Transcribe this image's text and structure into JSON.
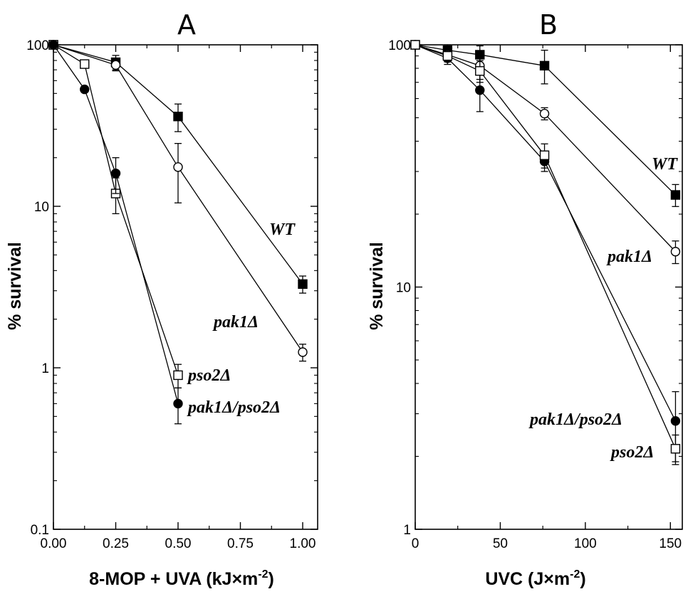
{
  "chart_data": [
    {
      "type": "line",
      "title": "A",
      "xlabel": "8-MOP + UVA (kJ×m",
      "xlabel_sup": "-2",
      "xlabel_end": ")",
      "ylabel": "% survival",
      "yscale": "log",
      "xlim": [
        0,
        1.06
      ],
      "ylim": [
        0.1,
        100
      ],
      "xticks": [
        "0.00",
        "0.25",
        "0.50",
        "0.75",
        "1.00"
      ],
      "xtick_values": [
        0,
        0.25,
        0.5,
        0.75,
        1.0
      ],
      "yticks": [
        "0.1",
        "1",
        "10",
        "100"
      ],
      "ytick_values": [
        0.1,
        1,
        10,
        100
      ],
      "series": [
        {
          "name": "WT",
          "marker": "filled-square",
          "x": [
            0,
            0.25,
            0.5,
            1.0
          ],
          "y": [
            100,
            78,
            36,
            3.3
          ],
          "err": [
            0,
            8,
            7,
            0.4
          ]
        },
        {
          "name": "pak1Δ",
          "marker": "open-circle",
          "x": [
            0,
            0.25,
            0.5,
            1.0
          ],
          "y": [
            100,
            75,
            17.5,
            1.25
          ],
          "err": [
            0,
            6,
            7,
            0.15
          ]
        },
        {
          "name": "pso2Δ",
          "marker": "open-square",
          "x": [
            0,
            0.125,
            0.25,
            0.5
          ],
          "y": [
            100,
            76,
            12,
            0.9
          ],
          "err": [
            0,
            0,
            3,
            0.15
          ]
        },
        {
          "name": "pak1Δ/pso2Δ",
          "marker": "filled-circle",
          "x": [
            0,
            0.125,
            0.25,
            0.5
          ],
          "y": [
            100,
            53,
            16,
            0.6
          ],
          "err": [
            0,
            0,
            4,
            0.15
          ]
        }
      ]
    },
    {
      "type": "line",
      "title": "B",
      "xlabel": "UVC (J×m",
      "xlabel_sup": "-2",
      "xlabel_end": ")",
      "ylabel": "% survival",
      "yscale": "log",
      "xlim": [
        0,
        157
      ],
      "ylim": [
        1,
        100
      ],
      "xticks": [
        "0",
        "50",
        "100",
        "150"
      ],
      "xtick_values": [
        0,
        50,
        100,
        150
      ],
      "yticks": [
        "1",
        "10",
        "100"
      ],
      "ytick_values": [
        1,
        10,
        100
      ],
      "series": [
        {
          "name": "WT",
          "marker": "filled-square",
          "x": [
            0,
            19,
            38,
            76,
            153
          ],
          "y": [
            100,
            95,
            91,
            82,
            24
          ],
          "err": [
            0,
            5,
            8,
            13,
            2.5
          ]
        },
        {
          "name": "pak1Δ",
          "marker": "open-circle",
          "x": [
            0,
            19,
            38,
            76,
            153
          ],
          "y": [
            100,
            91,
            82,
            52,
            14
          ],
          "err": [
            0,
            5,
            10,
            3,
            1.5
          ]
        },
        {
          "name": "pak1Δ/pso2Δ",
          "marker": "filled-circle",
          "x": [
            0,
            19,
            38,
            76,
            153
          ],
          "y": [
            100,
            88,
            65,
            33,
            2.8
          ],
          "err": [
            0,
            5,
            12,
            3,
            0.9
          ]
        },
        {
          "name": "pso2Δ",
          "marker": "open-square",
          "x": [
            0,
            19,
            38,
            76,
            153
          ],
          "y": [
            100,
            90,
            78,
            35,
            2.15
          ],
          "err": [
            0,
            5,
            8,
            4,
            0.3
          ]
        }
      ]
    }
  ]
}
